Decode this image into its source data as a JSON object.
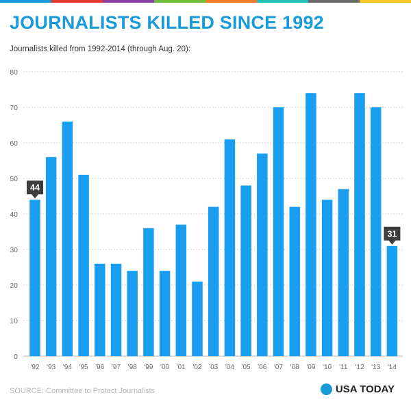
{
  "header": {
    "title": "JOURNALISTS KILLED SINCE 1992",
    "subtitle": "Journalists killed from 1992-2014 (through Aug. 20):"
  },
  "footer": {
    "source": "SOURCE: Committee to Protect Journalists",
    "brand": "USA TODAY"
  },
  "colors": {
    "accent": "#1a9ad9",
    "bar": "#1a9ef0",
    "callout": "#3d3d3d",
    "strip": [
      "#1a9ad9",
      "#e23b2e",
      "#8a3ea8",
      "#6fbe3c",
      "#f07b2a",
      "#25c0b5",
      "#6a6a6a",
      "#f7c325"
    ]
  },
  "chart_data": {
    "type": "bar",
    "title": "JOURNALISTS KILLED SINCE 1992",
    "subtitle": "Journalists killed from 1992-2014 (through Aug. 20):",
    "categories": [
      "'92",
      "'93",
      "'94",
      "'95",
      "'96",
      "'97",
      "'98",
      "'99",
      "'00",
      "'01",
      "'02",
      "'03",
      "'04",
      "'05",
      "'06",
      "'07",
      "'08",
      "'09",
      "'10",
      "'11",
      "'12",
      "'13",
      "'14"
    ],
    "values": [
      44,
      56,
      66,
      51,
      26,
      26,
      24,
      36,
      24,
      37,
      21,
      42,
      61,
      48,
      57,
      70,
      42,
      74,
      44,
      47,
      74,
      70,
      31
    ],
    "yticks": [
      0,
      10,
      20,
      30,
      40,
      50,
      60,
      70,
      80
    ],
    "ylim": [
      0,
      80
    ],
    "xlabel": "",
    "ylabel": "",
    "grid": true,
    "annotations": [
      {
        "index": 0,
        "label": "44"
      },
      {
        "index": 22,
        "label": "31"
      }
    ]
  }
}
